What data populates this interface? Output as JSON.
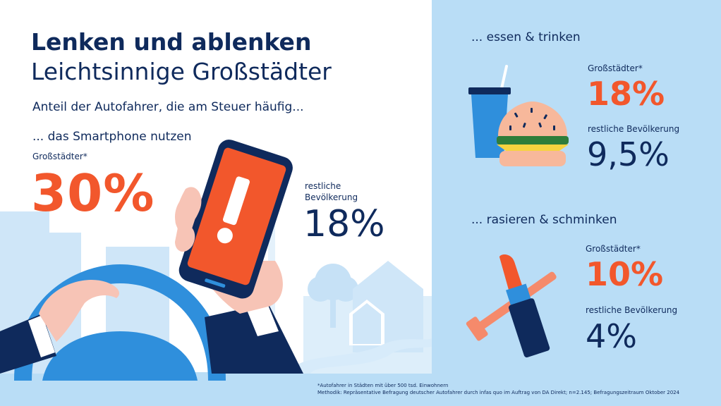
{
  "headline": {
    "title": "Lenken und ablenken",
    "subtitle": "Leichtsinnige Großstädter"
  },
  "intro": "Anteil der Autofahrer, die am Steuer häufig...",
  "smartphone": {
    "heading": "... das Smartphone nutzen",
    "group1_label": "Großstädter*",
    "group1_value": "30%",
    "group2_label_line1": "restliche",
    "group2_label_line2": "Bevölkerung",
    "group2_value": "18%"
  },
  "eating": {
    "heading": "... essen & trinken",
    "group1_label": "Großstädter*",
    "group1_value": "18%",
    "group2_label": "restliche Bevölkerung",
    "group2_value": "9,5%"
  },
  "grooming": {
    "heading": "... rasieren & schminken",
    "group1_label": "Großstädter*",
    "group1_value": "10%",
    "group2_label": "restliche Bevölkerung",
    "group2_value": "4%"
  },
  "footnote": {
    "line1": "*Autofahrer in Städten mit über 500 tsd. Einwohnern",
    "line2": "Methodik: Repräsentative Befragung deutscher Autofahrer durch infas quo im Auftrag von DA Direkt; n=2.145; Befragungszeitraum Oktober 2024"
  },
  "icons": [
    "warning-exclamation-icon",
    "cup-icon",
    "burger-icon",
    "lipstick-icon",
    "razor-icon",
    "tree-icon",
    "house-icon"
  ],
  "colors": {
    "navy": "#0f2a5c",
    "orange": "#f2572c",
    "light_blue": "#b9ddf6",
    "mid_blue": "#2f8fdc"
  }
}
